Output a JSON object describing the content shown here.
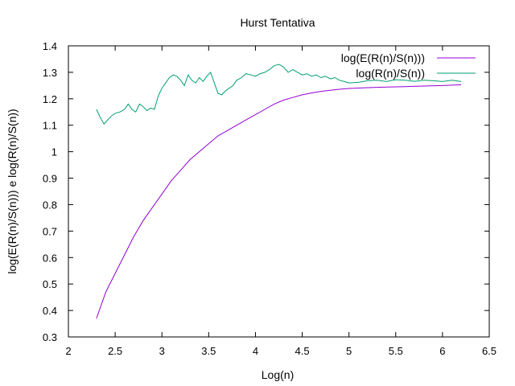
{
  "chart_data": {
    "type": "line",
    "title": "Hurst Tentativa",
    "xlabel": "Log(n)",
    "ylabel": "log(E(R(n)/S(n))) e log(R(n)/S(n))",
    "xlim": [
      2,
      6.5
    ],
    "ylim": [
      0.3,
      1.4
    ],
    "x_ticks": [
      "2",
      "2.5",
      "3",
      "3.5",
      "4",
      "4.5",
      "5",
      "5.5",
      "6",
      "6.5"
    ],
    "y_ticks": [
      "0.3",
      "0.4",
      "0.5",
      "0.6",
      "0.7",
      "0.8",
      "0.9",
      "1",
      "1.1",
      "1.2",
      "1.3",
      "1.4"
    ],
    "grid": false,
    "legend_position": "top-right",
    "series": [
      {
        "name": "log(E(R(n)/S(n)))",
        "color": "#9400d3",
        "x": [
          2.3,
          2.35,
          2.4,
          2.5,
          2.6,
          2.7,
          2.8,
          2.9,
          3.0,
          3.1,
          3.2,
          3.3,
          3.4,
          3.5,
          3.6,
          3.7,
          3.8,
          3.9,
          4.0,
          4.1,
          4.2,
          4.3,
          4.4,
          4.5,
          4.6,
          4.7,
          4.8,
          4.9,
          5.0,
          5.2,
          5.4,
          5.6,
          5.8,
          6.0,
          6.2
        ],
        "values": [
          0.37,
          0.42,
          0.47,
          0.54,
          0.61,
          0.68,
          0.74,
          0.79,
          0.84,
          0.89,
          0.93,
          0.97,
          1.0,
          1.03,
          1.06,
          1.08,
          1.1,
          1.12,
          1.14,
          1.16,
          1.18,
          1.195,
          1.205,
          1.215,
          1.222,
          1.228,
          1.232,
          1.236,
          1.239,
          1.242,
          1.244,
          1.246,
          1.248,
          1.25,
          1.253
        ]
      },
      {
        "name": "log(R(n)/S(n))",
        "color": "#009e73",
        "x": [
          2.3,
          2.34,
          2.38,
          2.42,
          2.46,
          2.5,
          2.55,
          2.6,
          2.64,
          2.68,
          2.72,
          2.76,
          2.8,
          2.84,
          2.88,
          2.92,
          2.96,
          3.0,
          3.04,
          3.08,
          3.12,
          3.16,
          3.2,
          3.24,
          3.28,
          3.32,
          3.36,
          3.4,
          3.44,
          3.48,
          3.52,
          3.56,
          3.6,
          3.64,
          3.68,
          3.72,
          3.76,
          3.8,
          3.85,
          3.9,
          3.95,
          4.0,
          4.05,
          4.1,
          4.15,
          4.2,
          4.25,
          4.3,
          4.35,
          4.4,
          4.45,
          4.5,
          4.55,
          4.6,
          4.65,
          4.7,
          4.75,
          4.8,
          4.85,
          4.9,
          4.95,
          5.0,
          5.1,
          5.2,
          5.3,
          5.4,
          5.5,
          5.6,
          5.7,
          5.8,
          5.9,
          6.0,
          6.1,
          6.2
        ],
        "values": [
          1.16,
          1.13,
          1.105,
          1.12,
          1.135,
          1.145,
          1.15,
          1.16,
          1.18,
          1.16,
          1.15,
          1.18,
          1.17,
          1.155,
          1.165,
          1.16,
          1.21,
          1.24,
          1.26,
          1.28,
          1.29,
          1.285,
          1.27,
          1.25,
          1.29,
          1.27,
          1.26,
          1.28,
          1.265,
          1.285,
          1.3,
          1.26,
          1.22,
          1.215,
          1.23,
          1.24,
          1.25,
          1.27,
          1.28,
          1.295,
          1.29,
          1.285,
          1.295,
          1.3,
          1.31,
          1.325,
          1.33,
          1.32,
          1.3,
          1.31,
          1.3,
          1.29,
          1.295,
          1.285,
          1.29,
          1.28,
          1.285,
          1.275,
          1.28,
          1.27,
          1.265,
          1.26,
          1.262,
          1.268,
          1.27,
          1.265,
          1.272,
          1.27,
          1.266,
          1.27,
          1.268,
          1.265,
          1.27,
          1.265
        ]
      }
    ]
  }
}
